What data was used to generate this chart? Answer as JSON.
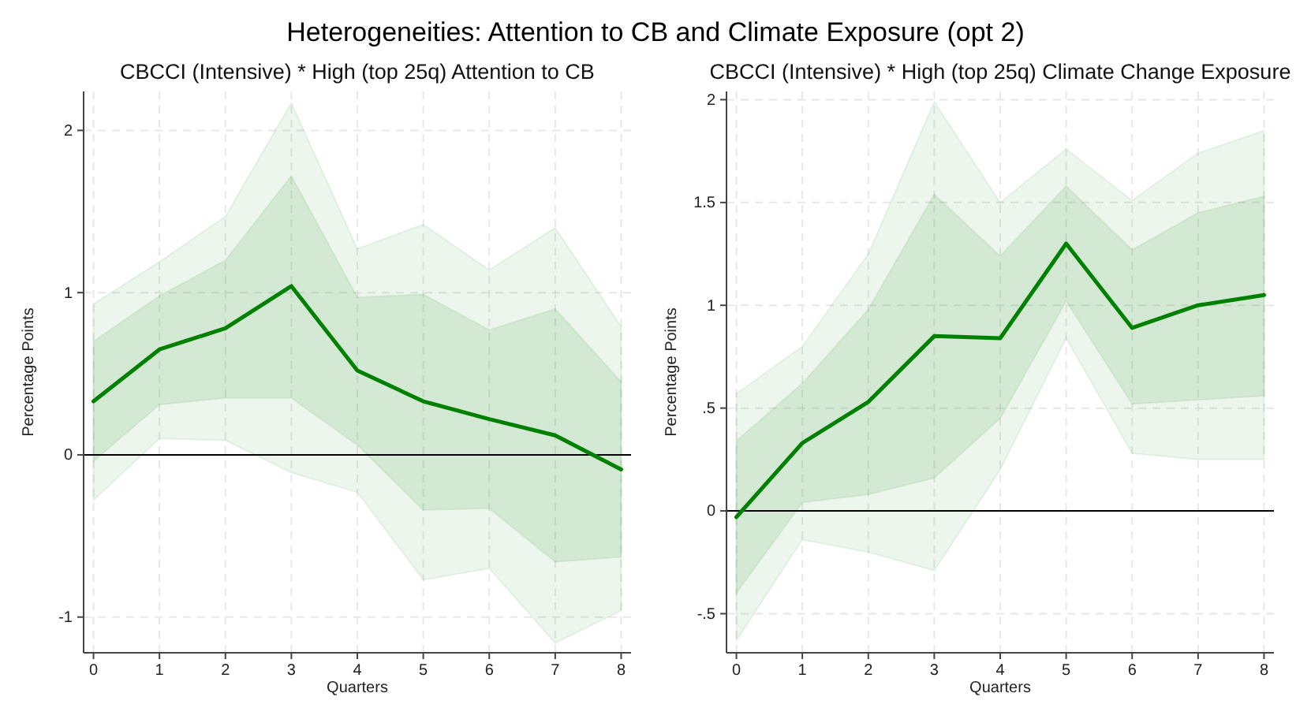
{
  "chart_data": [
    {
      "type": "line",
      "title": "CBCCI (Intensive) * High (top 25q) Attention to CB",
      "xlabel": "Quarters",
      "ylabel": "Percentage Points",
      "annotations": [
        "Heterogeneities: Attention to CB and Climate Exposure (opt 2)"
      ],
      "x": [
        0,
        1,
        2,
        3,
        4,
        5,
        6,
        7,
        8
      ],
      "xlim": [
        -0.15,
        8.15
      ],
      "xticks": [
        0,
        1,
        2,
        3,
        4,
        5,
        6,
        7,
        8
      ],
      "ylim": [
        -1.22,
        2.24
      ],
      "yticks": [
        -1,
        0,
        1,
        2
      ],
      "grid": true,
      "ref_lines": [
        {
          "axis": "y",
          "value": 0,
          "color": "#000000"
        }
      ],
      "series": [
        {
          "color": "#008000",
          "values": [
            0.33,
            0.65,
            0.78,
            1.04,
            0.52,
            0.33,
            0.22,
            0.12,
            -0.09
          ],
          "lower": [
            -0.04,
            0.31,
            0.35,
            0.35,
            0.06,
            -0.34,
            -0.33,
            -0.66,
            -0.63
          ],
          "upper": [
            0.7,
            0.98,
            1.2,
            1.72,
            0.97,
            0.99,
            0.77,
            0.9,
            0.45
          ]
        },
        {
          "color": "#008000",
          "values": [
            null,
            null,
            null,
            null,
            null,
            null,
            null,
            null,
            null
          ],
          "lower": [
            -0.28,
            0.1,
            0.09,
            -0.11,
            -0.23,
            -0.77,
            -0.7,
            -1.16,
            -0.96
          ],
          "upper": [
            0.93,
            1.19,
            1.47,
            2.17,
            1.27,
            1.42,
            1.14,
            1.4,
            0.79
          ]
        }
      ]
    },
    {
      "type": "line",
      "title": "CBCCI (Intensive) * High (top 25q) Climate Change Exposure",
      "xlabel": "Quarters",
      "ylabel": "Percentage Points",
      "x": [
        0,
        1,
        2,
        3,
        4,
        5,
        6,
        7,
        8
      ],
      "xlim": [
        -0.15,
        8.15
      ],
      "xticks": [
        0,
        1,
        2,
        3,
        4,
        5,
        6,
        7,
        8
      ],
      "ylim": [
        -0.69,
        2.04
      ],
      "yticks": [
        {
          "value": -0.5,
          "label": "-.5"
        },
        0,
        {
          "value": 0.5,
          "label": ".5"
        },
        1,
        1.5,
        2
      ],
      "grid": true,
      "ref_lines": [
        {
          "axis": "y",
          "value": 0,
          "color": "#000000"
        }
      ],
      "series": [
        {
          "color": "#008000",
          "values": [
            -0.03,
            0.33,
            0.53,
            0.85,
            0.84,
            1.3,
            0.89,
            1.0,
            1.05
          ],
          "lower": [
            -0.4,
            0.04,
            0.08,
            0.16,
            0.45,
            1.02,
            0.52,
            0.54,
            0.56
          ],
          "upper": [
            0.34,
            0.62,
            0.98,
            1.54,
            1.24,
            1.58,
            1.27,
            1.45,
            1.53
          ]
        },
        {
          "color": "#008000",
          "values": [
            null,
            null,
            null,
            null,
            null,
            null,
            null,
            null,
            null
          ],
          "lower": [
            -0.63,
            -0.14,
            -0.2,
            -0.29,
            0.2,
            0.84,
            0.28,
            0.25,
            0.25
          ],
          "upper": [
            0.57,
            0.8,
            1.25,
            1.99,
            1.5,
            1.76,
            1.51,
            1.74,
            1.85
          ]
        }
      ]
    }
  ]
}
